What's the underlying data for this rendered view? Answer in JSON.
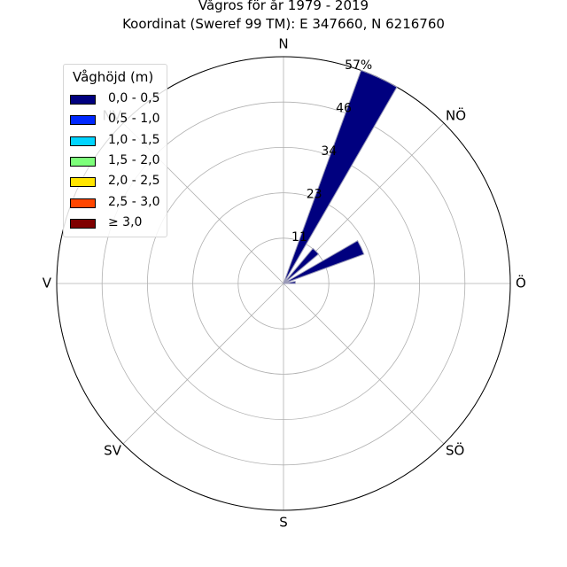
{
  "chart_data": {
    "type": "windrose",
    "title": "Vågros för år 1979 - 2019",
    "subtitle": "Koordinat (Sweref 99 TM): E 347660, N 6216760",
    "direction_labels": [
      "N",
      "NÖ",
      "Ö",
      "SÖ",
      "S",
      "SV",
      "V",
      "NV"
    ],
    "radial_tick_labels": [
      "11",
      "23",
      "34",
      "46",
      "57%"
    ],
    "radial_ticks": [
      11.4,
      22.8,
      34.2,
      45.6,
      57
    ],
    "rmax": 57,
    "legend_title": "Våghöjd (m)",
    "legend": [
      {
        "label": "0,0 - 0,5",
        "color": "#00007f"
      },
      {
        "label": "0,5 - 1,0",
        "color": "#0028ff"
      },
      {
        "label": "1,0 - 1,5",
        "color": "#00d4ff"
      },
      {
        "label": "1,5 - 2,0",
        "color": "#7dff7a"
      },
      {
        "label": "2,0 - 2,5",
        "color": "#ffe500"
      },
      {
        "label": "2,5 - 3,0",
        "color": "#ff4600"
      },
      {
        "label": "≥ 3,0",
        "color": "#7f0000"
      }
    ],
    "sector_width_deg": 10,
    "series": [
      {
        "bin": "0,0 - 0,5",
        "color": "#00007f",
        "data": [
          {
            "direction_deg": 25,
            "value": 57
          },
          {
            "direction_deg": 45,
            "value": 11.5
          },
          {
            "direction_deg": 65,
            "value": 21.5
          },
          {
            "direction_deg": 85,
            "value": 3
          }
        ]
      }
    ]
  }
}
